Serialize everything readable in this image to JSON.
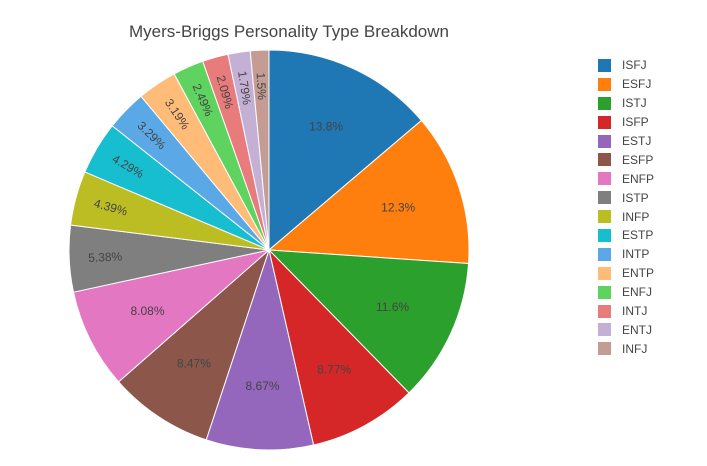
{
  "chart_data": {
    "type": "pie",
    "title": "Myers-Briggs Personality Type Breakdown",
    "slices": [
      {
        "label": "ISFJ",
        "percent": 13.8,
        "text": "13.8%",
        "color": "#1f77b4"
      },
      {
        "label": "ESFJ",
        "percent": 12.3,
        "text": "12.3%",
        "color": "#ff7f0e"
      },
      {
        "label": "ISTJ",
        "percent": 11.6,
        "text": "11.6%",
        "color": "#2ca02c"
      },
      {
        "label": "ISFP",
        "percent": 8.77,
        "text": "8.77%",
        "color": "#d62728"
      },
      {
        "label": "ESTJ",
        "percent": 8.67,
        "text": "8.67%",
        "color": "#9467bd"
      },
      {
        "label": "ESFP",
        "percent": 8.47,
        "text": "8.47%",
        "color": "#8c564b"
      },
      {
        "label": "ENFP",
        "percent": 8.08,
        "text": "8.08%",
        "color": "#e377c2"
      },
      {
        "label": "ISTP",
        "percent": 5.38,
        "text": "5.38%",
        "color": "#7f7f7f"
      },
      {
        "label": "INFP",
        "percent": 4.39,
        "text": "4.39%",
        "color": "#bcbd22"
      },
      {
        "label": "ESTP",
        "percent": 4.29,
        "text": "4.29%",
        "color": "#17becf"
      },
      {
        "label": "INTP",
        "percent": 3.29,
        "text": "3.29%",
        "color": "#5aa9e6"
      },
      {
        "label": "ENTP",
        "percent": 3.19,
        "text": "3.19%",
        "color": "#ffbb78"
      },
      {
        "label": "ENFJ",
        "percent": 2.49,
        "text": "2.49%",
        "color": "#5fd35f"
      },
      {
        "label": "INTJ",
        "percent": 2.09,
        "text": "2.09%",
        "color": "#e87b7b"
      },
      {
        "label": "ENTJ",
        "percent": 1.79,
        "text": "1.79%",
        "color": "#c5b0d5"
      },
      {
        "label": "INFJ",
        "percent": 1.5,
        "text": "1.5%",
        "color": "#c49c94"
      }
    ],
    "legend_position": "right",
    "start_angle": "12 o'clock",
    "direction": "clockwise",
    "label_color": "#444444"
  }
}
